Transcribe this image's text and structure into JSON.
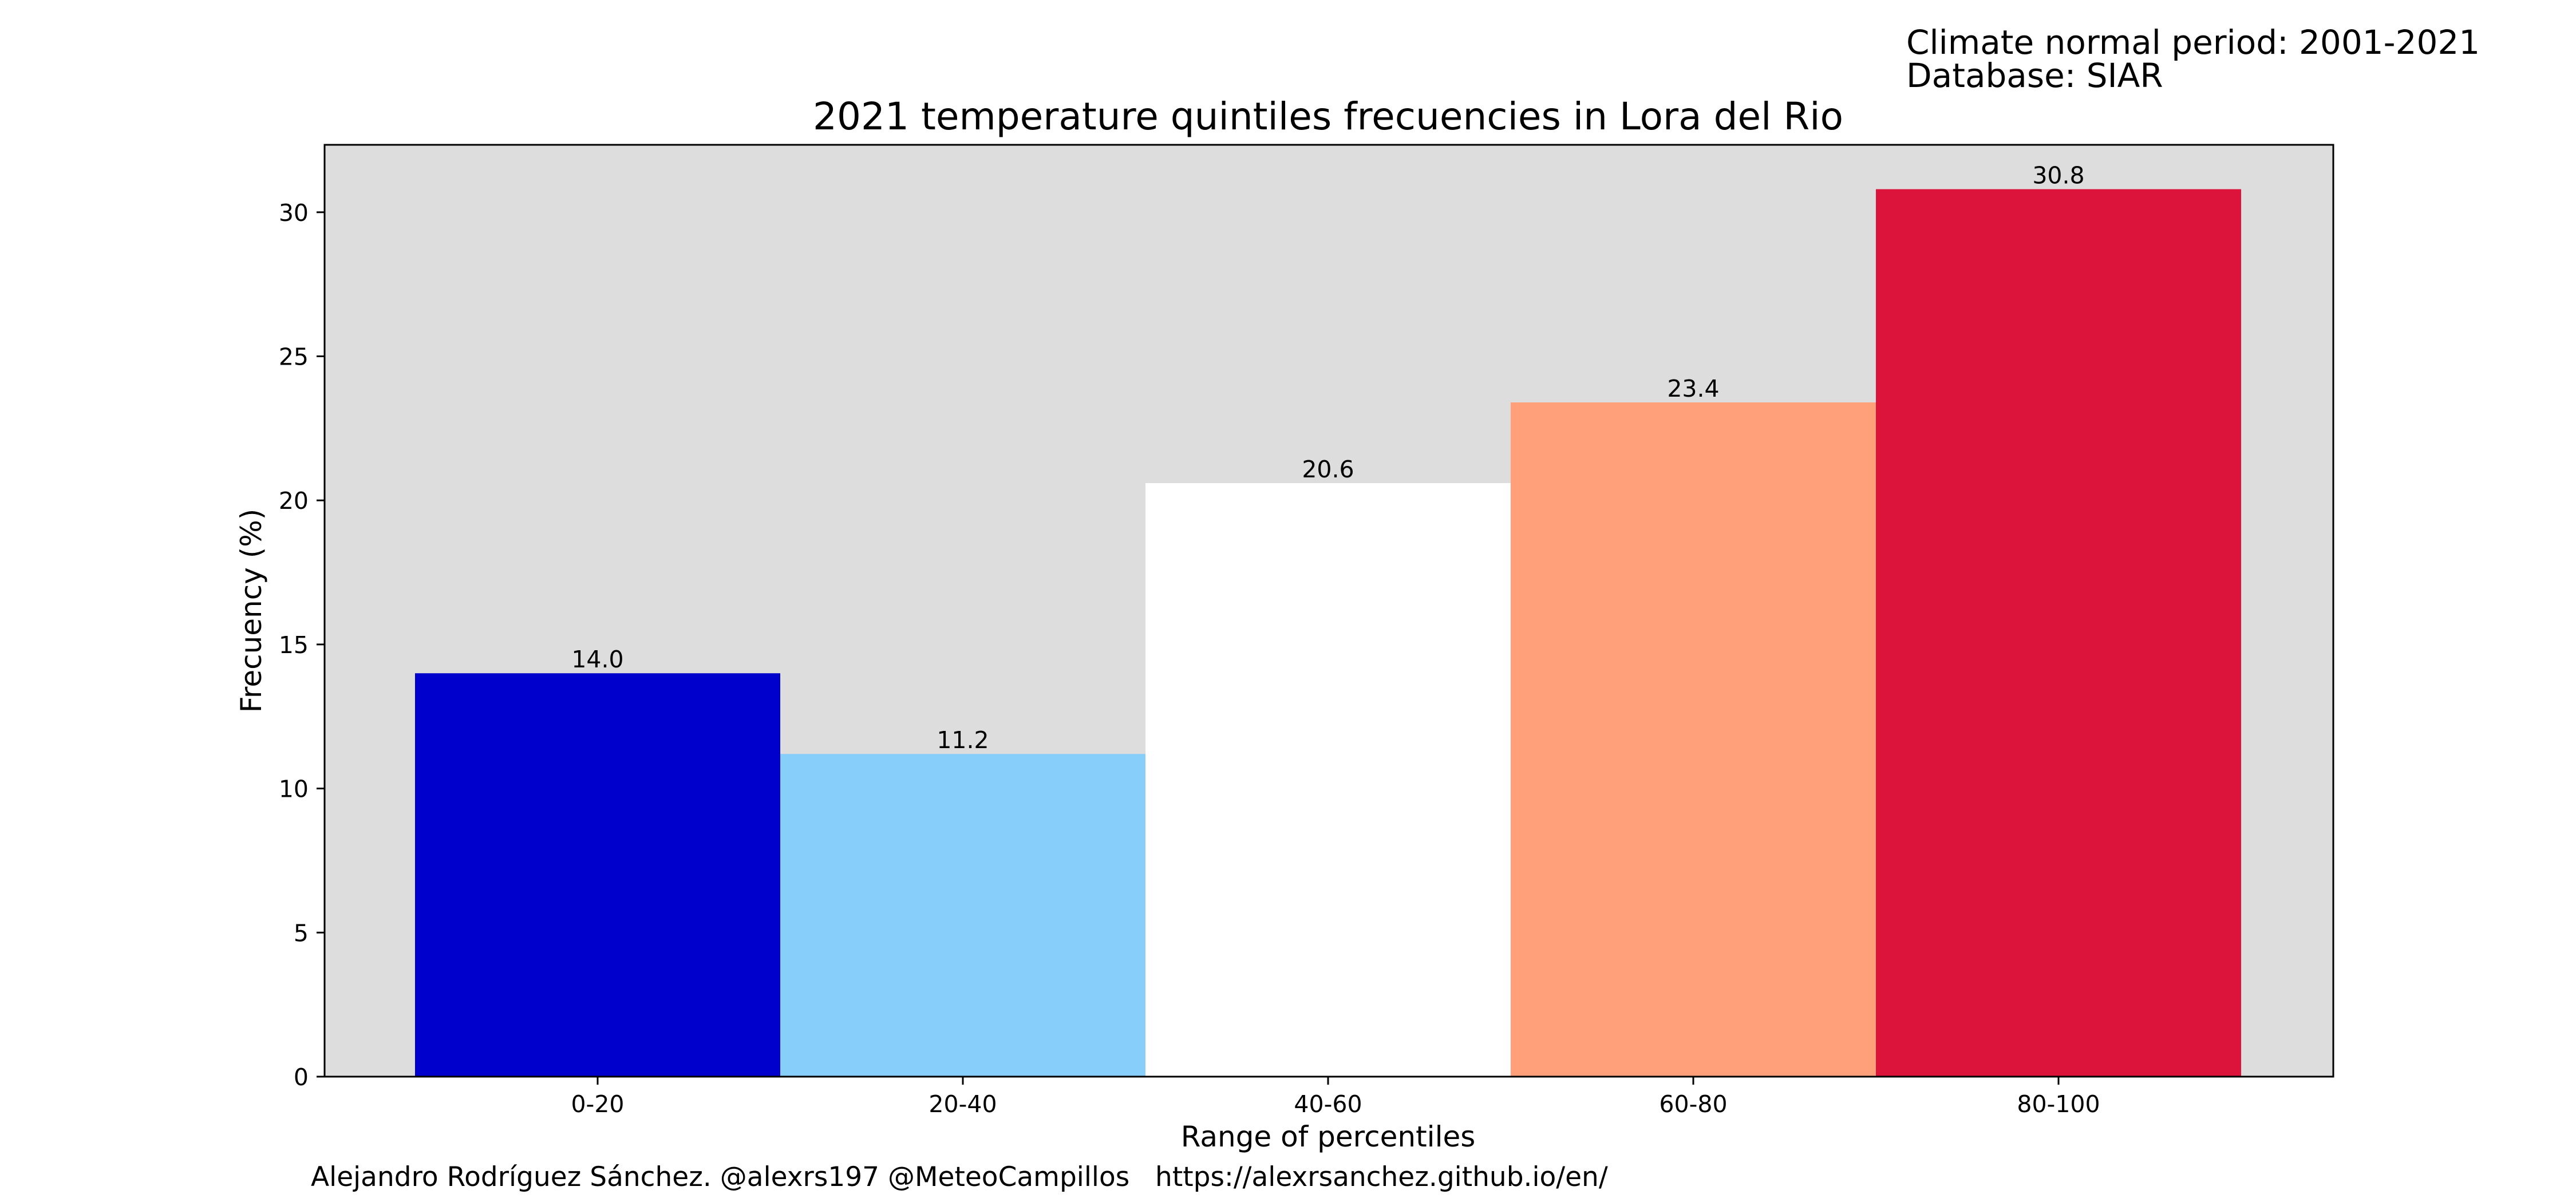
{
  "meta": {
    "period_line": "Climate normal period: 2001-2021",
    "database_line": "Database: SIAR"
  },
  "footer": {
    "credit": "Alejandro Rodríguez Sánchez. @alexrs197 @MeteoCampillos   https://alexrsanchez.github.io/en/"
  },
  "chart_data": {
    "type": "bar",
    "title": "2021 temperature quintiles frecuencies in Lora del Rio",
    "xlabel": "Range of percentiles",
    "ylabel": "Frecuency (%)",
    "categories": [
      "0-20",
      "20-40",
      "40-60",
      "60-80",
      "80-100"
    ],
    "values": [
      14.0,
      11.2,
      20.6,
      23.4,
      30.8
    ],
    "data_labels": [
      "14.0",
      "11.2",
      "20.6",
      "23.4",
      "30.8"
    ],
    "bar_colors": [
      "#0000cd",
      "#87cefa",
      "#ffffff",
      "#ffa07a",
      "#dc143c"
    ],
    "yticks": [
      0,
      5,
      10,
      15,
      20,
      25,
      30
    ],
    "ylim": [
      0,
      32.34
    ],
    "plot_background": "#dddddd",
    "grid": false,
    "legend": "none"
  }
}
